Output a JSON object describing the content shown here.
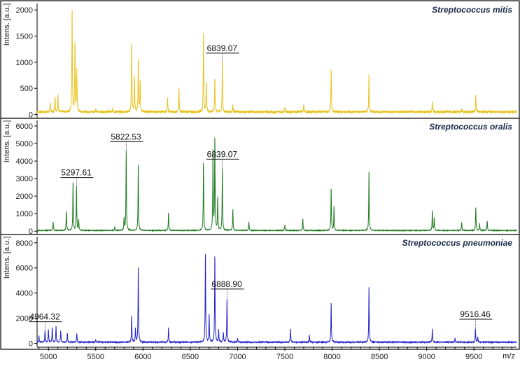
{
  "chart_data": [
    {
      "type": "line",
      "title": "Streptococcus mitis",
      "ylabel": "Intens. [a.u.]",
      "xlabel": "m/z",
      "color": "#e8c21c",
      "xlim": [
        4880,
        9950
      ],
      "ylim": [
        -60,
        2150
      ],
      "yticks": [
        0,
        500,
        1000,
        1500,
        2000
      ],
      "baseline": 50,
      "peaks": [
        {
          "x": 5020,
          "y": 180
        },
        {
          "x": 5070,
          "y": 300
        },
        {
          "x": 5100,
          "y": 350
        },
        {
          "x": 5250,
          "y": 2000
        },
        {
          "x": 5280,
          "y": 1350
        },
        {
          "x": 5300,
          "y": 800
        },
        {
          "x": 5500,
          "y": 60
        },
        {
          "x": 5680,
          "y": 80
        },
        {
          "x": 5880,
          "y": 1350
        },
        {
          "x": 5910,
          "y": 700
        },
        {
          "x": 5950,
          "y": 1050
        },
        {
          "x": 5970,
          "y": 600
        },
        {
          "x": 6260,
          "y": 250
        },
        {
          "x": 6380,
          "y": 450
        },
        {
          "x": 6640,
          "y": 1550
        },
        {
          "x": 6670,
          "y": 580
        },
        {
          "x": 6760,
          "y": 650
        },
        {
          "x": 6839,
          "y": 950
        },
        {
          "x": 6950,
          "y": 150
        },
        {
          "x": 7500,
          "y": 90
        },
        {
          "x": 7700,
          "y": 150
        },
        {
          "x": 7990,
          "y": 820
        },
        {
          "x": 8390,
          "y": 700
        },
        {
          "x": 9060,
          "y": 220
        },
        {
          "x": 9370,
          "y": 60
        },
        {
          "x": 9520,
          "y": 340
        }
      ],
      "peak_labels": [
        {
          "x": 6839,
          "label": "6839.07"
        }
      ]
    },
    {
      "type": "line",
      "title": "Streptococcus oralis",
      "ylabel": "Intens. [a.u.]",
      "xlabel": "m/z",
      "color": "#1e7a1e",
      "xlim": [
        4880,
        9950
      ],
      "ylim": [
        -150,
        6400
      ],
      "yticks": [
        0,
        1000,
        2000,
        3000,
        4000,
        5000,
        6000
      ],
      "baseline": 40,
      "peaks": [
        {
          "x": 5050,
          "y": 500
        },
        {
          "x": 5190,
          "y": 1100
        },
        {
          "x": 5260,
          "y": 2800
        },
        {
          "x": 5297,
          "y": 2500
        },
        {
          "x": 5320,
          "y": 600
        },
        {
          "x": 5700,
          "y": 200
        },
        {
          "x": 5800,
          "y": 700
        },
        {
          "x": 5822,
          "y": 4550
        },
        {
          "x": 5950,
          "y": 3850
        },
        {
          "x": 6270,
          "y": 1050
        },
        {
          "x": 6640,
          "y": 3950
        },
        {
          "x": 6740,
          "y": 4500
        },
        {
          "x": 6760,
          "y": 5300
        },
        {
          "x": 6790,
          "y": 1900
        },
        {
          "x": 6839,
          "y": 3550
        },
        {
          "x": 6950,
          "y": 1200
        },
        {
          "x": 7120,
          "y": 500
        },
        {
          "x": 7500,
          "y": 300
        },
        {
          "x": 7690,
          "y": 700
        },
        {
          "x": 7990,
          "y": 2450
        },
        {
          "x": 8020,
          "y": 1400
        },
        {
          "x": 8390,
          "y": 3350
        },
        {
          "x": 9060,
          "y": 1150
        },
        {
          "x": 9080,
          "y": 700
        },
        {
          "x": 9370,
          "y": 450
        },
        {
          "x": 9520,
          "y": 1350
        },
        {
          "x": 9560,
          "y": 400
        },
        {
          "x": 9640,
          "y": 550
        }
      ],
      "peak_labels": [
        {
          "x": 5297.61,
          "label": "5297.61"
        },
        {
          "x": 5822.53,
          "label": "5822.53"
        },
        {
          "x": 6839.07,
          "label": "6839.07"
        }
      ]
    },
    {
      "type": "line",
      "title": "Streptococcus pneumoniae",
      "ylabel": "Intens. [a.u.]",
      "xlabel": "m/z",
      "color": "#2424c8",
      "xlim": [
        4880,
        9950
      ],
      "ylim": [
        -300,
        8600
      ],
      "yticks": [
        0,
        2000,
        4000,
        6000,
        8000
      ],
      "baseline": 100,
      "peaks": [
        {
          "x": 4900,
          "y": 500
        },
        {
          "x": 4964,
          "y": 900
        },
        {
          "x": 5000,
          "y": 1000
        },
        {
          "x": 5040,
          "y": 1200
        },
        {
          "x": 5080,
          "y": 1300
        },
        {
          "x": 5130,
          "y": 900
        },
        {
          "x": 5200,
          "y": 700
        },
        {
          "x": 5300,
          "y": 700
        },
        {
          "x": 5500,
          "y": 200
        },
        {
          "x": 5880,
          "y": 2150
        },
        {
          "x": 5920,
          "y": 1100
        },
        {
          "x": 5950,
          "y": 6050
        },
        {
          "x": 6270,
          "y": 1200
        },
        {
          "x": 6660,
          "y": 7200
        },
        {
          "x": 6700,
          "y": 2200
        },
        {
          "x": 6760,
          "y": 7000
        },
        {
          "x": 6800,
          "y": 1000
        },
        {
          "x": 6850,
          "y": 800
        },
        {
          "x": 6888,
          "y": 3500
        },
        {
          "x": 7000,
          "y": 300
        },
        {
          "x": 7560,
          "y": 1100
        },
        {
          "x": 7760,
          "y": 600
        },
        {
          "x": 7990,
          "y": 3200
        },
        {
          "x": 8390,
          "y": 4350
        },
        {
          "x": 9060,
          "y": 1050
        },
        {
          "x": 9300,
          "y": 350
        },
        {
          "x": 9516,
          "y": 1100
        },
        {
          "x": 9540,
          "y": 400
        }
      ],
      "peak_labels": [
        {
          "x": 4964.32,
          "label": "4964.32"
        },
        {
          "x": 6888.9,
          "label": "6888.90"
        },
        {
          "x": 9516.46,
          "label": "9516.46"
        }
      ],
      "xticks": [
        5000,
        5500,
        6000,
        6500,
        7000,
        7500,
        8000,
        8500,
        9000,
        9500
      ]
    }
  ]
}
